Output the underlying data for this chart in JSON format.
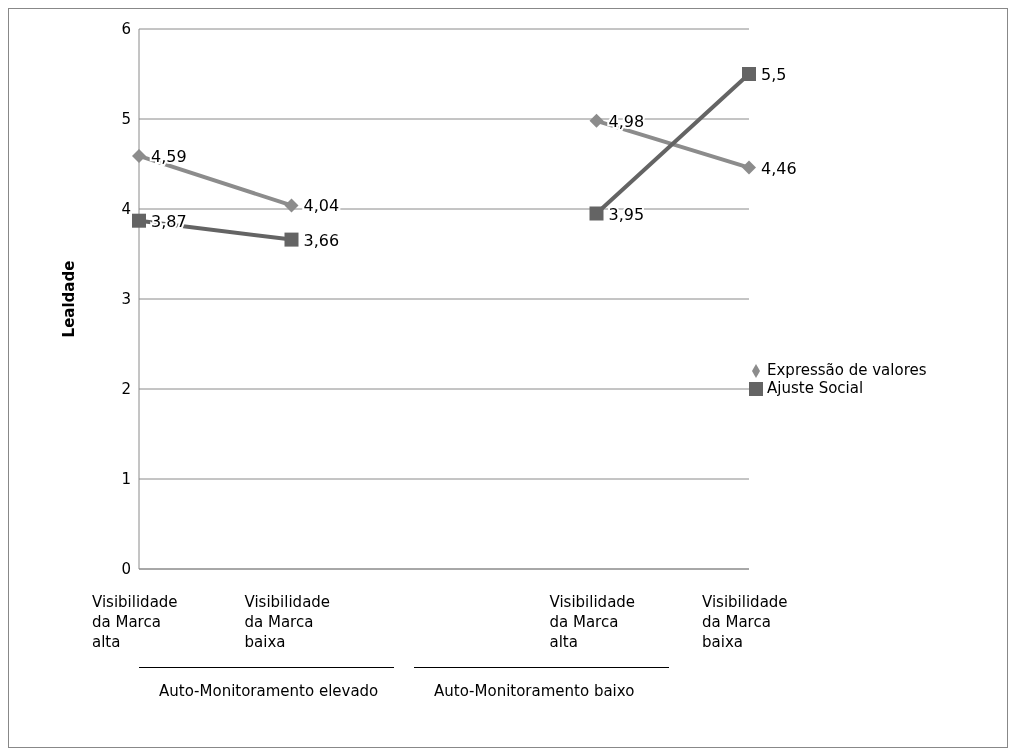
{
  "chart_data": {
    "type": "line",
    "ylabel": "Lealdade",
    "categories": [
      "Visibilidade da Marca alta",
      "Visibilidade da Marca baixa",
      null,
      "Visibilidade da Marca alta",
      "Visibilidade da Marca baixa"
    ],
    "series": [
      {
        "name": "Expressão de valores",
        "color": "#8c8c8c",
        "marker": "diamond",
        "values": [
          4.59,
          4.04,
          null,
          4.98,
          4.46
        ],
        "value_labels": [
          "4,59",
          "4,04",
          null,
          "4,98",
          "4,46"
        ]
      },
      {
        "name": "Ajuste Social",
        "color": "#646464",
        "marker": "square",
        "values": [
          3.87,
          3.66,
          null,
          3.95,
          5.5
        ],
        "value_labels": [
          "3,87",
          "3,66",
          null,
          "3,95",
          "5,5"
        ]
      }
    ],
    "ylim": [
      0,
      6
    ],
    "yticks": [
      0,
      1,
      2,
      3,
      4,
      5,
      6
    ],
    "grid": "y",
    "legend": "right",
    "annotations": [
      "Auto-Monitoramento elevado",
      "Auto-Monitoramento baixo"
    ]
  }
}
